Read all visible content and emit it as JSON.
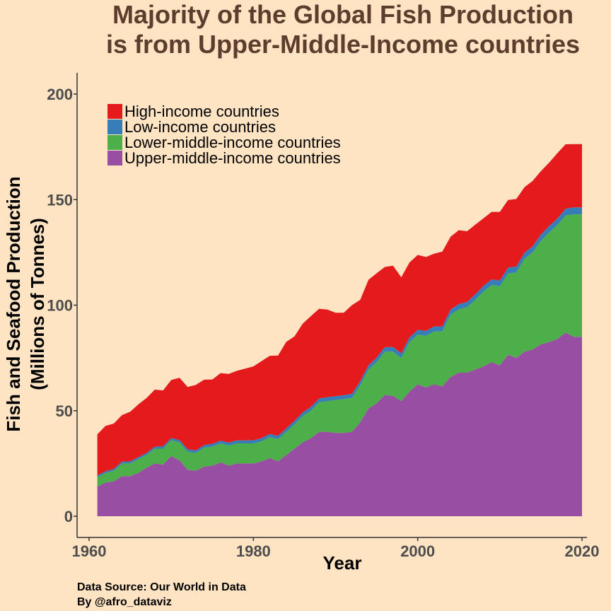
{
  "chart_data": {
    "type": "area",
    "stacked": true,
    "title_lines": [
      "Majority of the Global Fish Production",
      "is from Upper-Middle-Income countries"
    ],
    "xlabel": "Year",
    "ylabel_lines": [
      "Fish and Seafood Production",
      "(Millions of Tonnes)"
    ],
    "xlim": [
      1960,
      2020
    ],
    "ylim": [
      0,
      200
    ],
    "x_ticks": [
      1960,
      1980,
      2000,
      2020
    ],
    "y_ticks": [
      0,
      50,
      100,
      150,
      200
    ],
    "grid": false,
    "legend_position": "top-left",
    "legend_entries": [
      "High-income countries",
      "Low-income countries",
      "Lower-middle-income countries",
      "Upper-middle-income countries"
    ],
    "colors": {
      "High-income countries": "#E41A1C",
      "Low-income countries": "#377EB8",
      "Lower-middle-income countries": "#4DAF4A",
      "Upper-middle-income countries": "#984EA3"
    },
    "x": [
      1961,
      1962,
      1963,
      1964,
      1965,
      1966,
      1967,
      1968,
      1969,
      1970,
      1971,
      1972,
      1973,
      1974,
      1975,
      1976,
      1977,
      1978,
      1979,
      1980,
      1981,
      1982,
      1983,
      1984,
      1985,
      1986,
      1987,
      1988,
      1989,
      1990,
      1991,
      1992,
      1993,
      1994,
      1995,
      1996,
      1997,
      1998,
      1999,
      2000,
      2001,
      2002,
      2003,
      2004,
      2005,
      2006,
      2007,
      2008,
      2009,
      2010,
      2011,
      2012,
      2013,
      2014,
      2015,
      2016,
      2017,
      2018,
      2019,
      2020
    ],
    "series": [
      {
        "name": "Upper-middle-income countries",
        "values": [
          14,
          16,
          16.5,
          19,
          19,
          20.5,
          23,
          25,
          24.5,
          28.5,
          26.5,
          22,
          21.5,
          23.5,
          24,
          25.5,
          24,
          25,
          25,
          25,
          26,
          27.5,
          26,
          29,
          32,
          35,
          37,
          40,
          40,
          39.5,
          39.5,
          40,
          44.5,
          51,
          53.5,
          57.5,
          57,
          54.5,
          59,
          62.5,
          61,
          62.5,
          61.5,
          66,
          68,
          68,
          69.5,
          71,
          73,
          71.5,
          76.5,
          75,
          78,
          79,
          81.5,
          82.5,
          84,
          87,
          85,
          85
        ]
      },
      {
        "name": "Lower-middle-income countries",
        "values": [
          4.5,
          4.5,
          5,
          6,
          6,
          6.5,
          6,
          7,
          7.5,
          7.5,
          8.5,
          8.5,
          8.5,
          9,
          9,
          9,
          9.5,
          9.5,
          9.5,
          9.5,
          9.5,
          10,
          10.5,
          11,
          11.5,
          12.5,
          13,
          14,
          14.5,
          15.5,
          16,
          16,
          17.5,
          18.5,
          19.5,
          20.5,
          21,
          20.5,
          23.5,
          23.5,
          24.5,
          25,
          26,
          29.5,
          30,
          31,
          33,
          35.5,
          36.5,
          37.5,
          38.5,
          40.5,
          44,
          46,
          49,
          52,
          54,
          55.5,
          58,
          58
        ]
      },
      {
        "name": "Low-income countries",
        "values": [
          0.8,
          0.8,
          0.9,
          0.9,
          1,
          1,
          1,
          1,
          1.1,
          1.1,
          1.1,
          1.2,
          1.2,
          1.2,
          1.3,
          1.3,
          1.4,
          1.4,
          1.4,
          1.5,
          1.5,
          1.5,
          1.6,
          1.6,
          1.7,
          1.7,
          1.8,
          1.8,
          1.9,
          1.9,
          1.9,
          2,
          2,
          2,
          2.1,
          2.1,
          2.2,
          2.2,
          2.2,
          2.3,
          2.3,
          2.4,
          2.4,
          2.4,
          2.5,
          2.5,
          2.6,
          2.6,
          2.7,
          2.7,
          2.8,
          2.8,
          2.9,
          2.9,
          3,
          3,
          3,
          3.2,
          3.3,
          3.3
        ]
      },
      {
        "name": "High-income countries",
        "values": [
          19.5,
          21.5,
          21.5,
          22,
          23.5,
          25,
          26,
          27,
          26.5,
          27.5,
          29.5,
          29.5,
          31,
          31,
          30.5,
          32,
          32.5,
          33,
          34,
          35,
          36.5,
          37,
          38,
          41,
          40,
          42,
          43,
          42.5,
          41.5,
          39.5,
          39,
          42,
          38.5,
          40.5,
          40,
          38,
          38.5,
          36,
          35.5,
          35.5,
          35,
          34.5,
          35.5,
          34.5,
          35,
          33.5,
          33,
          32,
          32,
          32.5,
          32,
          32,
          31,
          31,
          30,
          30,
          31,
          30.5,
          30,
          30
        ]
      }
    ]
  },
  "caption": {
    "line1": "Data Source: Our World in Data",
    "line2": "By @afro_dataviz"
  }
}
